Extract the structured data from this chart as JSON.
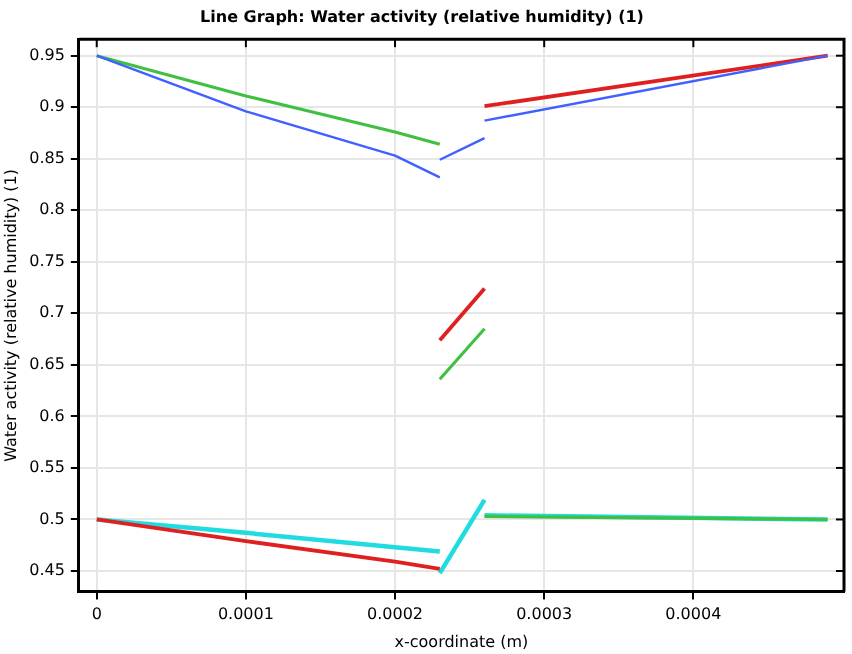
{
  "chart_data": {
    "type": "line",
    "title": "Line Graph: Water activity (relative humidity) (1)",
    "xlabel": "x-coordinate (m)",
    "ylabel": "Water activity (relative humidity) (1)",
    "xlim": [
      -1.2e-05,
      0.000501
    ],
    "xticks": [
      0,
      0.0001,
      0.0002,
      0.0003,
      0.0004
    ],
    "ylim": [
      0.43,
      0.966
    ],
    "yticks": [
      0.45,
      0.5,
      0.55,
      0.6,
      0.65,
      0.7,
      0.75,
      0.8,
      0.85,
      0.9,
      0.95
    ],
    "grid": true,
    "legend": false,
    "marker": "none",
    "line_style": "solid",
    "series": [
      {
        "color": "#4060ff",
        "x": [
          0,
          0.0001,
          0.0002,
          0.00023
        ],
        "values": [
          0.95,
          0.896,
          0.853,
          0.832
        ]
      },
      {
        "color": "#4060ff",
        "x": [
          0.00023,
          0.00026
        ],
        "values": [
          0.849,
          0.87
        ]
      },
      {
        "color": "#4060ff",
        "x": [
          0.00026,
          0.00049
        ],
        "values": [
          0.887,
          0.95
        ]
      },
      {
        "color": "#40c040",
        "x": [
          0,
          0.0001,
          0.0002,
          0.00023
        ],
        "values": [
          0.95,
          0.911,
          0.876,
          0.864
        ]
      },
      {
        "color": "#40c040",
        "x": [
          0.00023,
          0.00026
        ],
        "values": [
          0.636,
          0.685
        ]
      },
      {
        "color": "#40c040",
        "x": [
          0.00026,
          0.00049
        ],
        "values": [
          0.503,
          0.5
        ]
      },
      {
        "color": "#e02020",
        "x": [
          0,
          0.0001,
          0.0002,
          0.00023
        ],
        "values": [
          0.5,
          0.479,
          0.459,
          0.452
        ]
      },
      {
        "color": "#e02020",
        "x": [
          0.00023,
          0.00026
        ],
        "values": [
          0.674,
          0.724
        ]
      },
      {
        "color": "#e02020",
        "x": [
          0.00026,
          0.00049
        ],
        "values": [
          0.901,
          0.95
        ]
      },
      {
        "color": "#20dce0",
        "x": [
          0,
          0.0001,
          0.0002,
          0.00023
        ],
        "values": [
          0.5,
          0.487,
          0.473,
          0.469
        ]
      },
      {
        "color": "#20dce0",
        "x": [
          0.00023,
          0.00026
        ],
        "values": [
          0.448,
          0.519
        ]
      },
      {
        "color": "#20dce0",
        "x": [
          0.00026,
          0.00049
        ],
        "values": [
          0.504,
          0.5
        ]
      }
    ]
  }
}
